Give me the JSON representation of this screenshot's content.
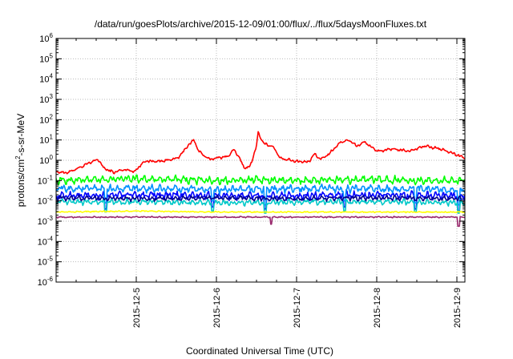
{
  "chart_data": {
    "type": "line",
    "title": "/data/run/goesPlots/archive/2015-12-09/01:00/flux/../flux/5daysMoonFluxes.txt",
    "xlabel": "Coordinated Universal Time (UTC)",
    "ylabel": "protons/cm2-s-sr-MeV",
    "ylabel_parts": {
      "pre": "protons/cm",
      "sup": "2",
      "post": "-s-sr-MeV"
    },
    "x_range_days": [
      2015.1204,
      2015.12091
    ],
    "x_ticks": [
      "2015-12-5",
      "2015-12-6",
      "2015-12-7",
      "2015-12-8",
      "2015-12-9"
    ],
    "y_scale": "log",
    "y_range": [
      1e-06,
      1000000.0
    ],
    "y_ticks": [
      {
        "base": "10",
        "exp": "-6"
      },
      {
        "base": "10",
        "exp": "-5"
      },
      {
        "base": "10",
        "exp": "-4"
      },
      {
        "base": "10",
        "exp": "-3"
      },
      {
        "base": "10",
        "exp": "-2"
      },
      {
        "base": "10",
        "exp": "-1"
      },
      {
        "base": "10",
        "exp": "0"
      },
      {
        "base": "10",
        "exp": "1"
      },
      {
        "base": "10",
        "exp": "2"
      },
      {
        "base": "10",
        "exp": "3"
      },
      {
        "base": "10",
        "exp": "4"
      },
      {
        "base": "10",
        "exp": "5"
      },
      {
        "base": "10",
        "exp": "6"
      }
    ],
    "grid": true,
    "series": [
      {
        "color": "#ff0000",
        "keypoints": [
          [
            4.0,
            -0.55
          ],
          [
            4.12,
            -0.63
          ],
          [
            4.3,
            -0.35
          ],
          [
            4.52,
            0.05
          ],
          [
            4.6,
            -0.4
          ],
          [
            4.72,
            -0.6
          ],
          [
            4.85,
            -0.45
          ],
          [
            4.98,
            -0.55
          ],
          [
            5.1,
            -0.05
          ],
          [
            5.3,
            -0.05
          ],
          [
            5.52,
            0.1
          ],
          [
            5.64,
            0.7
          ],
          [
            5.72,
            1.0
          ],
          [
            5.78,
            0.45
          ],
          [
            5.9,
            0.05
          ],
          [
            6.15,
            0.2
          ],
          [
            6.22,
            0.55
          ],
          [
            6.28,
            0.15
          ],
          [
            6.35,
            -0.4
          ],
          [
            6.42,
            -0.3
          ],
          [
            6.5,
            0.7
          ],
          [
            6.52,
            1.4
          ],
          [
            6.56,
            1.0
          ],
          [
            6.6,
            0.8
          ],
          [
            6.7,
            0.7
          ],
          [
            6.8,
            0.1
          ],
          [
            7.0,
            -0.05
          ],
          [
            7.15,
            -0.1
          ],
          [
            7.22,
            0.3
          ],
          [
            7.3,
            0.05
          ],
          [
            7.4,
            0.3
          ],
          [
            7.55,
            0.9
          ],
          [
            7.65,
            1.0
          ],
          [
            7.75,
            0.7
          ],
          [
            7.85,
            0.9
          ],
          [
            8.0,
            0.45
          ],
          [
            8.2,
            0.55
          ],
          [
            8.4,
            0.45
          ],
          [
            8.6,
            0.7
          ],
          [
            8.8,
            0.55
          ],
          [
            8.98,
            0.3
          ],
          [
            9.1,
            0.1
          ]
        ],
        "wiggle": 0.1,
        "noise": 0.04,
        "dips": []
      },
      {
        "color": "#00ff00",
        "keypoints": [
          [
            4.0,
            -1.0
          ],
          [
            4.5,
            -0.95
          ],
          [
            5.0,
            -0.9
          ],
          [
            5.5,
            -0.95
          ],
          [
            6.0,
            -1.0
          ],
          [
            6.5,
            -0.95
          ],
          [
            7.0,
            -1.0
          ],
          [
            7.5,
            -0.95
          ],
          [
            8.0,
            -0.95
          ],
          [
            8.5,
            -1.0
          ],
          [
            9.1,
            -1.0
          ]
        ],
        "wiggle": 0.35,
        "noise": 0.08,
        "dips": []
      },
      {
        "color": "#0000ff",
        "keypoints": [
          [
            4.0,
            -1.75
          ],
          [
            5.0,
            -1.7
          ],
          [
            6.0,
            -1.75
          ],
          [
            7.0,
            -1.75
          ],
          [
            8.0,
            -1.7
          ],
          [
            9.1,
            -1.75
          ]
        ],
        "wiggle": 0.3,
        "noise": 0.1,
        "dips": [
          [
            4.62,
            -2.4
          ],
          [
            5.95,
            -2.3
          ],
          [
            6.61,
            -2.4
          ],
          [
            7.6,
            -2.3
          ],
          [
            8.48,
            -2.4
          ],
          [
            9.02,
            -2.5
          ]
        ]
      },
      {
        "color": "#0090ff",
        "keypoints": [
          [
            4.0,
            -1.4
          ],
          [
            5.0,
            -1.4
          ],
          [
            6.0,
            -1.45
          ],
          [
            7.0,
            -1.4
          ],
          [
            8.0,
            -1.4
          ],
          [
            9.1,
            -1.45
          ]
        ],
        "wiggle": 0.3,
        "noise": 0.1,
        "dips": [
          [
            4.62,
            -2.1
          ],
          [
            5.95,
            -2.0
          ],
          [
            6.61,
            -2.2
          ],
          [
            7.6,
            -2.0
          ],
          [
            8.48,
            -2.1
          ],
          [
            9.02,
            -2.2
          ]
        ]
      },
      {
        "color": "#00c8c8",
        "keypoints": [
          [
            4.0,
            -2.05
          ],
          [
            5.0,
            -2.05
          ],
          [
            6.0,
            -2.1
          ],
          [
            7.0,
            -2.05
          ],
          [
            8.0,
            -2.05
          ],
          [
            9.1,
            -2.1
          ]
        ],
        "wiggle": 0.25,
        "noise": 0.06,
        "dips": [
          [
            4.62,
            -2.55
          ],
          [
            5.95,
            -2.5
          ],
          [
            6.61,
            -2.6
          ],
          [
            7.6,
            -2.5
          ],
          [
            8.48,
            -2.55
          ],
          [
            9.02,
            -2.6
          ]
        ]
      },
      {
        "color": "#000090",
        "keypoints": [
          [
            4.0,
            -1.85
          ],
          [
            5.0,
            -1.9
          ],
          [
            6.0,
            -1.85
          ],
          [
            7.0,
            -1.9
          ],
          [
            8.0,
            -1.85
          ],
          [
            9.1,
            -1.9
          ]
        ],
        "wiggle": 0.2,
        "noise": 0.06,
        "dips": []
      },
      {
        "color": "#ffff00",
        "keypoints": [
          [
            4.0,
            -2.55
          ],
          [
            5.0,
            -2.5
          ],
          [
            6.0,
            -2.55
          ],
          [
            7.0,
            -2.55
          ],
          [
            8.0,
            -2.55
          ],
          [
            9.1,
            -2.55
          ]
        ],
        "wiggle": 0.04,
        "noise": 0.02,
        "dips": []
      },
      {
        "color": "#9a2a6e",
        "keypoints": [
          [
            4.0,
            -2.8
          ],
          [
            5.0,
            -2.8
          ],
          [
            6.0,
            -2.8
          ],
          [
            7.0,
            -2.8
          ],
          [
            8.0,
            -2.8
          ],
          [
            9.1,
            -2.8
          ]
        ],
        "wiggle": 0.05,
        "noise": 0.02,
        "dips": [
          [
            6.68,
            -3.15
          ],
          [
            9.02,
            -3.25
          ]
        ]
      }
    ]
  }
}
